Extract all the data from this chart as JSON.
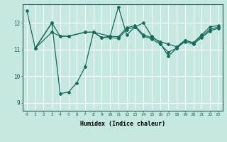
{
  "xlabel": "Humidex (Indice chaleur)",
  "xlim": [
    -0.5,
    23.5
  ],
  "ylim": [
    8.7,
    12.7
  ],
  "yticks": [
    9,
    10,
    11,
    12
  ],
  "xticks": [
    0,
    1,
    2,
    3,
    4,
    5,
    6,
    7,
    8,
    9,
    10,
    11,
    12,
    13,
    14,
    15,
    16,
    17,
    18,
    19,
    20,
    21,
    22,
    23
  ],
  "bg_color": "#c5e8e0",
  "line_color": "#1a6b5a",
  "grid_color": "#ffffff",
  "lines": [
    {
      "x": [
        0,
        1,
        3,
        4,
        5,
        6,
        7,
        8,
        9,
        10,
        11,
        12,
        13,
        14,
        15,
        16,
        17,
        18,
        19,
        20,
        21,
        22,
        23
      ],
      "y": [
        12.45,
        11.05,
        12.0,
        9.35,
        9.4,
        9.75,
        10.35,
        11.65,
        11.45,
        11.5,
        12.6,
        11.55,
        11.85,
        12.0,
        11.5,
        11.25,
        10.75,
        11.05,
        11.35,
        11.25,
        11.55,
        11.85,
        11.9
      ]
    },
    {
      "x": [
        1,
        3,
        4,
        5,
        7,
        8,
        10,
        11,
        12,
        13,
        14,
        15,
        16,
        17,
        18,
        19,
        20,
        21,
        22,
        23
      ],
      "y": [
        11.05,
        12.0,
        11.5,
        11.5,
        11.65,
        11.65,
        11.5,
        11.48,
        11.82,
        11.9,
        11.55,
        11.45,
        11.3,
        11.2,
        11.1,
        11.35,
        11.25,
        11.5,
        11.75,
        11.85
      ]
    },
    {
      "x": [
        1,
        3,
        4,
        5,
        7,
        8,
        9,
        10,
        11,
        12,
        13,
        14,
        15,
        16,
        17,
        18,
        19,
        20,
        21,
        22,
        23
      ],
      "y": [
        11.05,
        11.65,
        11.5,
        11.5,
        11.65,
        11.65,
        11.45,
        11.45,
        11.42,
        11.75,
        11.85,
        11.5,
        11.4,
        11.2,
        10.9,
        11.05,
        11.3,
        11.2,
        11.45,
        11.7,
        11.8
      ]
    }
  ]
}
